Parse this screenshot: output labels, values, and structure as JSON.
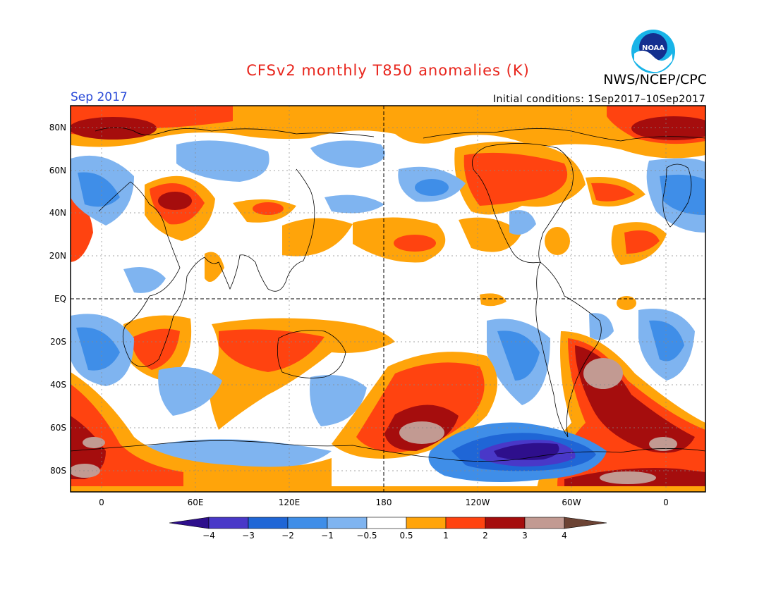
{
  "header": {
    "title": "CFSv2 monthly T850 anomalies (K)",
    "organization": "NWS/NCEP/CPC",
    "logo_text": "NOAA",
    "period": "Sep 2017",
    "initial_conditions": "Initial conditions: 1Sep2017–10Sep2017"
  },
  "map": {
    "projection": "cylindrical-equidistant",
    "lon_center": 180,
    "lat_labels": [
      "80N",
      "60N",
      "40N",
      "20N",
      "EQ",
      "20S",
      "40S",
      "60S",
      "80S"
    ],
    "lon_labels": [
      "0",
      "60E",
      "120E",
      "180",
      "120W",
      "60W",
      "0"
    ]
  },
  "legend": {
    "units": "K",
    "ticks": [
      "−4",
      "−3",
      "−2",
      "−1",
      "−0.5",
      "0.5",
      "1",
      "2",
      "3",
      "4"
    ],
    "colors": {
      "lt_m4": "#2e0f8c",
      "m4_m3": "#4938c8",
      "m3_m2": "#1f66d6",
      "m2_m1": "#3f8ee8",
      "m1_m05": "#7fb4f0",
      "m05_05": "#ffffff",
      "05_1": "#ffa40a",
      "1_2": "#ff4310",
      "2_3": "#a50d0d",
      "3_4": "#c29a92",
      "gt_4": "#6c4334"
    }
  }
}
